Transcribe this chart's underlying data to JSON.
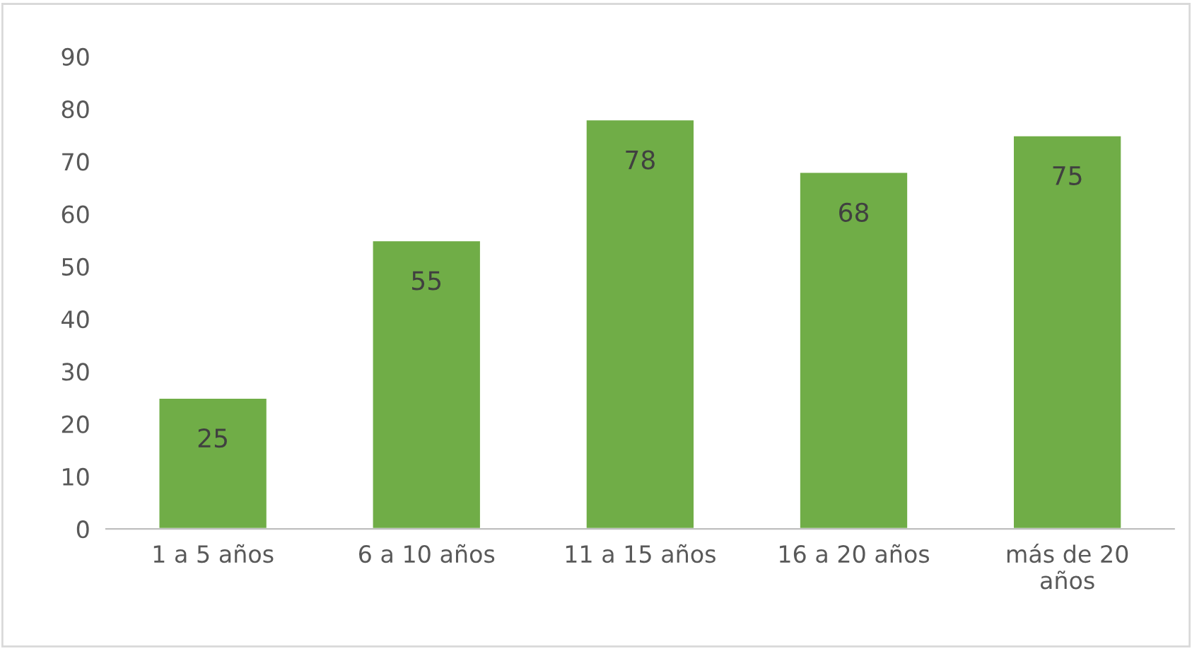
{
  "chart_data": {
    "type": "bar",
    "categories": [
      "1 a 5 años",
      "6 a 10 años",
      "11 a 15 años",
      "16 a 20 años",
      "más de 20\naños"
    ],
    "values": [
      25,
      55,
      78,
      68,
      75
    ],
    "color": "#70ad47",
    "ylim": [
      0,
      90
    ],
    "yticks": [
      0,
      10,
      20,
      30,
      40,
      50,
      60,
      70,
      80,
      90
    ],
    "grid": false,
    "data_labels": true
  }
}
